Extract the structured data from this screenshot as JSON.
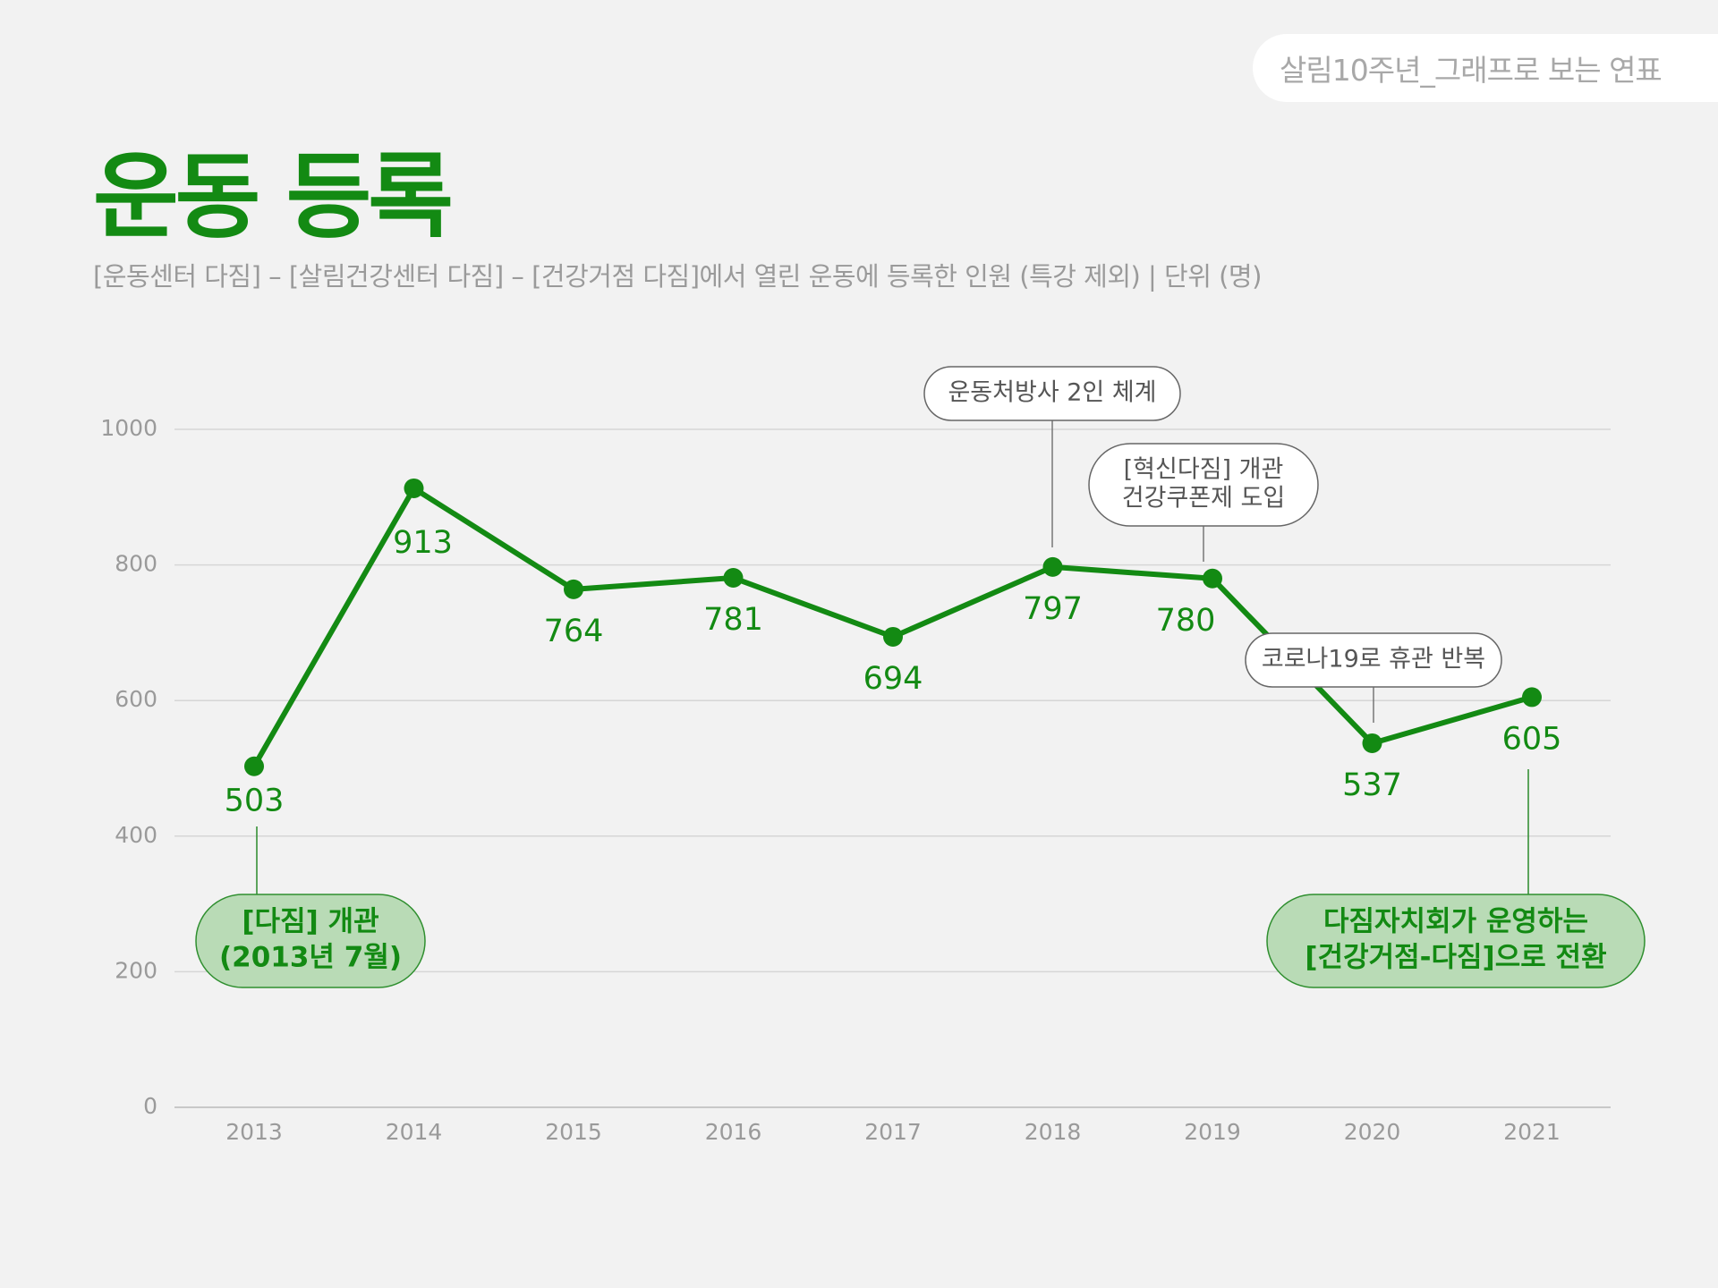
{
  "header": {
    "series_tag": "살림10주년_그래프로 보는 연표"
  },
  "chart_data": {
    "type": "line",
    "title": "운동 등록",
    "subtitle": "[운동센터 다짐] – [살림건강센터 다짐] – [건강거점 다짐]에서 열린 운동에 등록한 인원 (특강 제외)  |  단위 (명)",
    "categories": [
      "2013",
      "2014",
      "2015",
      "2016",
      "2017",
      "2018",
      "2019",
      "2020",
      "2021"
    ],
    "values": [
      503,
      913,
      764,
      781,
      694,
      797,
      780,
      537,
      605
    ],
    "ylim": [
      0,
      1000
    ],
    "yticks": [
      0,
      200,
      400,
      600,
      800,
      1000
    ],
    "grid": true,
    "legend": "none",
    "line_color": "#138a13",
    "annotations": [
      {
        "category": "2018",
        "lines": [
          "운동처방사 2인 체계"
        ],
        "style": "callout"
      },
      {
        "category": "2019",
        "lines": [
          "[혁신다짐] 개관",
          "건강쿠폰제 도입"
        ],
        "style": "callout"
      },
      {
        "category": "2020",
        "lines": [
          "코로나19로 휴관 반복"
        ],
        "style": "callout"
      },
      {
        "category": "2013",
        "lines": [
          "[다짐] 개관",
          "(2013년 7월)"
        ],
        "style": "milestone"
      },
      {
        "category": "2021",
        "lines": [
          "다짐자치회가 운영하는",
          "[건강거점-다짐]으로 전환"
        ],
        "style": "milestone"
      }
    ]
  },
  "colors": {
    "accent": "#138a13",
    "milestone_fill": "#b9dbb6",
    "background": "#f2f2f2"
  }
}
